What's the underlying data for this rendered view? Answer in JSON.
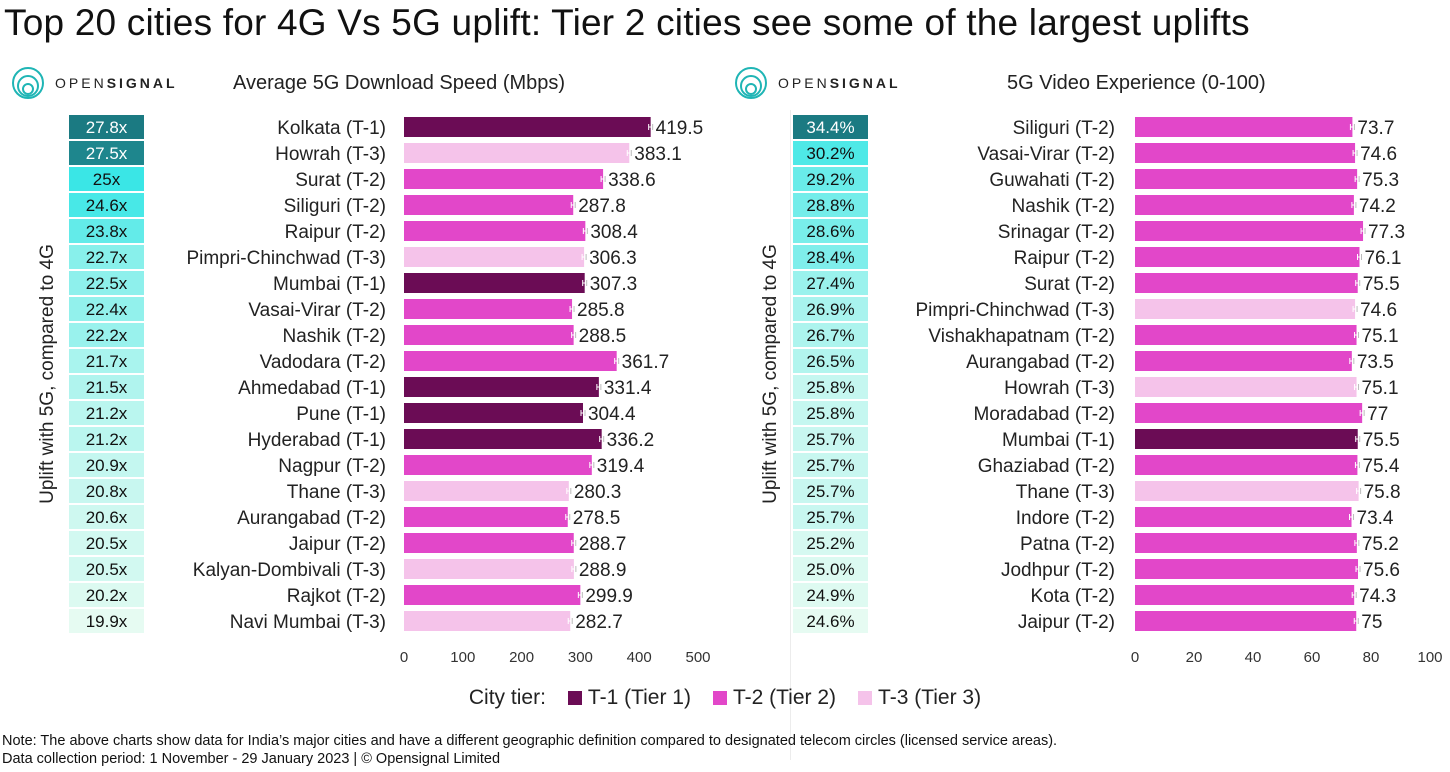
{
  "title": "Top 20 cities for 4G Vs 5G uplift: Tier 2 cities see some of the largest uplifts",
  "brand": {
    "light": "OPEN",
    "bold": "SIGNAL"
  },
  "colors": {
    "tier1": "#6b0c55",
    "tier2": "#e247c9",
    "tier3": "#f5c3ea",
    "badge_dark": "#1b7a82",
    "badge_mid": "#39e6e6",
    "badge_light": "#e6fbf2",
    "error_bar": "#ffffff"
  },
  "legend": {
    "label": "City tier:",
    "items": [
      {
        "label": "T-1 (Tier 1)",
        "color": "#6b0c55"
      },
      {
        "label": "T-2 (Tier 2)",
        "color": "#e247c9"
      },
      {
        "label": "T-3 (Tier 3)",
        "color": "#f5c3ea"
      }
    ]
  },
  "note": {
    "line1": "Note: The above charts show data for India’s major cities and have a different geographic definition compared to  designated telecom circles  (licensed service areas).",
    "line2": "Data collection period: 1 November - 29 January 2023 | © Opensignal Limited"
  },
  "chart_data": [
    {
      "type": "bar",
      "orientation": "horizontal",
      "title": "Average 5G Download Speed (Mbps)",
      "uplift_label": "Uplift with 5G, compared to 4G",
      "xlim": [
        0,
        500
      ],
      "xticks": [
        "0",
        "100",
        "200",
        "300",
        "400",
        "500"
      ],
      "categories": [
        "Kolkata (T-1)",
        "Howrah (T-3)",
        "Surat (T-2)",
        "Siliguri (T-2)",
        "Raipur (T-2)",
        "Pimpri-Chinchwad (T-3)",
        "Mumbai (T-1)",
        "Vasai-Virar (T-2)",
        "Nashik (T-2)",
        "Vadodara (T-2)",
        "Ahmedabad (T-1)",
        "Pune (T-1)",
        "Hyderabad (T-1)",
        "Nagpur (T-2)",
        "Thane (T-3)",
        "Aurangabad (T-2)",
        "Jaipur (T-2)",
        "Kalyan-Dombivali (T-3)",
        "Rajkot (T-2)",
        "Navi Mumbai (T-3)"
      ],
      "values": [
        419.5,
        383.1,
        338.6,
        287.8,
        308.4,
        306.3,
        307.3,
        285.8,
        288.5,
        361.7,
        331.4,
        304.4,
        336.2,
        319.4,
        280.3,
        278.5,
        288.7,
        288.9,
        299.9,
        282.7
      ],
      "value_labels": [
        "419.5",
        "383.1",
        "338.6",
        "287.8",
        "308.4",
        "306.3",
        "307.3",
        "285.8",
        "288.5",
        "361.7",
        "331.4",
        "304.4",
        "336.2",
        "319.4",
        "280.3",
        "278.5",
        "288.7",
        "288.9",
        "299.9",
        "282.7"
      ],
      "tiers": [
        1,
        3,
        2,
        2,
        2,
        3,
        1,
        2,
        2,
        2,
        1,
        1,
        1,
        2,
        3,
        2,
        2,
        3,
        2,
        3
      ],
      "uplift": [
        "27.8x",
        "27.5x",
        "25x",
        "24.6x",
        "23.8x",
        "22.7x",
        "22.5x",
        "22.4x",
        "22.2x",
        "21.7x",
        "21.5x",
        "21.2x",
        "21.2x",
        "20.9x",
        "20.8x",
        "20.6x",
        "20.5x",
        "20.5x",
        "20.2x",
        "19.9x"
      ],
      "uplift_values": [
        27.8,
        27.5,
        25,
        24.6,
        23.8,
        22.7,
        22.5,
        22.4,
        22.2,
        21.7,
        21.5,
        21.2,
        21.2,
        20.9,
        20.8,
        20.6,
        20.5,
        20.5,
        20.2,
        19.9
      ]
    },
    {
      "type": "bar",
      "orientation": "horizontal",
      "title": "5G Video Experience (0-100)",
      "uplift_label": "Uplift with 5G, compared to 4G",
      "xlim": [
        0,
        100
      ],
      "xticks": [
        "0",
        "20",
        "40",
        "60",
        "80",
        "100"
      ],
      "categories": [
        "Siliguri (T-2)",
        "Vasai-Virar (T-2)",
        "Guwahati (T-2)",
        "Nashik (T-2)",
        "Srinagar (T-2)",
        "Raipur (T-2)",
        "Surat (T-2)",
        "Pimpri-Chinchwad (T-3)",
        "Vishakhapatnam (T-2)",
        "Aurangabad (T-2)",
        "Howrah (T-3)",
        "Moradabad (T-2)",
        "Mumbai (T-1)",
        "Ghaziabad (T-2)",
        "Thane (T-3)",
        "Indore (T-2)",
        "Patna (T-2)",
        "Jodhpur (T-2)",
        "Kota (T-2)",
        "Jaipur (T-2)"
      ],
      "values": [
        73.7,
        74.6,
        75.3,
        74.2,
        77.3,
        76.1,
        75.5,
        74.6,
        75.1,
        73.5,
        75.1,
        77,
        75.5,
        75.4,
        75.8,
        73.4,
        75.2,
        75.6,
        74.3,
        75
      ],
      "value_labels": [
        "73.7",
        "74.6",
        "75.3",
        "74.2",
        "77.3",
        "76.1",
        "75.5",
        "74.6",
        "75.1",
        "73.5",
        "75.1",
        "77",
        "75.5",
        "75.4",
        "75.8",
        "73.4",
        "75.2",
        "75.6",
        "74.3",
        "75"
      ],
      "tiers": [
        2,
        2,
        2,
        2,
        2,
        2,
        2,
        3,
        2,
        2,
        3,
        2,
        1,
        2,
        3,
        2,
        2,
        2,
        2,
        2
      ],
      "uplift": [
        "34.4%",
        "30.2%",
        "29.2%",
        "28.8%",
        "28.6%",
        "28.4%",
        "27.4%",
        "26.9%",
        "26.7%",
        "26.5%",
        "25.8%",
        "25.8%",
        "25.7%",
        "25.7%",
        "25.7%",
        "25.7%",
        "25.2%",
        "25.0%",
        "24.9%",
        "24.6%"
      ],
      "uplift_values": [
        34.4,
        30.2,
        29.2,
        28.8,
        28.6,
        28.4,
        27.4,
        26.9,
        26.7,
        26.5,
        25.8,
        25.8,
        25.7,
        25.7,
        25.7,
        25.7,
        25.2,
        25.0,
        24.9,
        24.6
      ]
    }
  ]
}
